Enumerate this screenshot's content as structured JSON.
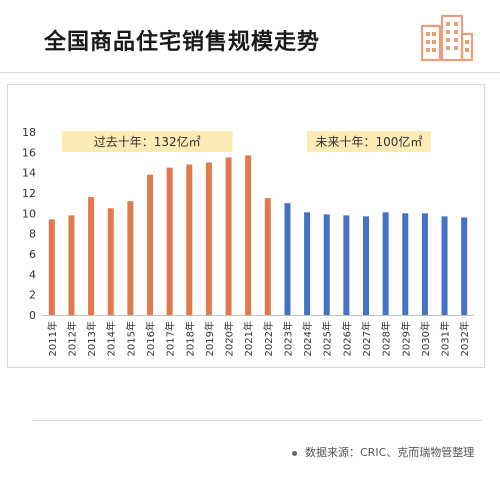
{
  "header": {
    "title": "全国商品住宅销售规模走势",
    "logo_icon": "building-logo-icon"
  },
  "source": {
    "text": "数据来源：CRIC、克而瑞物管整理"
  },
  "colors": {
    "past": "#E07A4E",
    "future": "#4472C4",
    "callout_bg": "#FCEBB4",
    "logo": "#E8A07A"
  },
  "chart_data": {
    "type": "bar",
    "categories": [
      "2011年",
      "2012年",
      "2013年",
      "2014年",
      "2015年",
      "2016年",
      "2017年",
      "2018年",
      "2019年",
      "2020年",
      "2021年",
      "2022年",
      "2023年",
      "2024年",
      "2025年",
      "2026年",
      "2027年",
      "2028年",
      "2029年",
      "2030年",
      "2031年",
      "2032年"
    ],
    "values": [
      9.4,
      9.8,
      11.6,
      10.5,
      11.2,
      13.8,
      14.5,
      14.8,
      15.0,
      15.5,
      15.7,
      11.5,
      11.0,
      10.1,
      9.9,
      9.8,
      9.7,
      10.1,
      10.0,
      10.0,
      9.7,
      9.6
    ],
    "series_colors_split_index": 12,
    "ylim": [
      0,
      18
    ],
    "yticks": [
      0,
      2,
      4,
      6,
      8,
      10,
      12,
      14,
      16,
      18
    ],
    "grid": false,
    "annotations": [
      {
        "text": "过去十年：132亿㎡",
        "group": "past"
      },
      {
        "text": "未来十年：100亿㎡",
        "group": "future"
      }
    ]
  }
}
